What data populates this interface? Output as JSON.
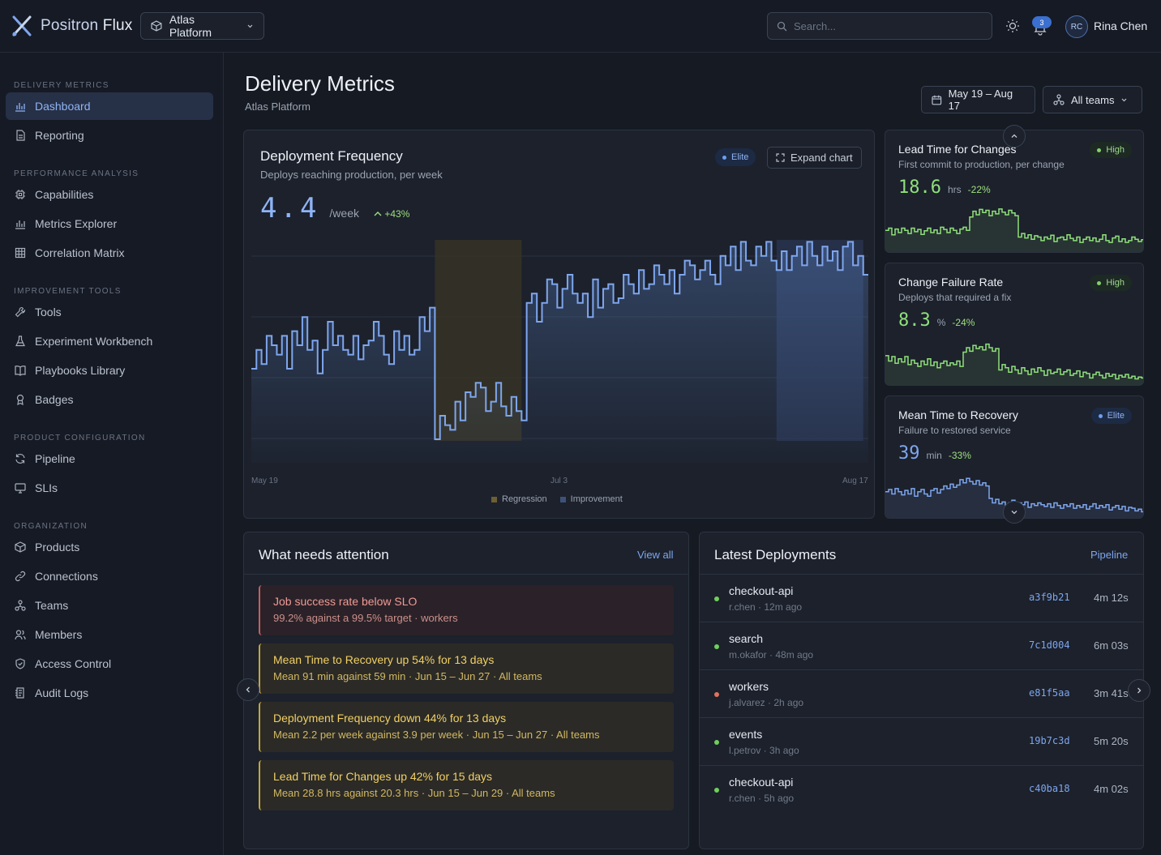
{
  "app": {
    "brand_a": "Positron",
    "brand_b": "Flux",
    "project": "Atlas Platform"
  },
  "topbar": {
    "search_placeholder": "Search...",
    "notifications": "3",
    "user_initials": "RC",
    "user_name": "Rina Chen"
  },
  "sidebar": {
    "groups": [
      {
        "label": "DELIVERY METRICS",
        "items": [
          {
            "label": "Dashboard",
            "icon": "bar-chart-icon",
            "active": true
          },
          {
            "label": "Reporting",
            "icon": "document-icon"
          }
        ]
      },
      {
        "label": "PERFORMANCE ANALYSIS",
        "items": [
          {
            "label": "Capabilities",
            "icon": "chip-icon"
          },
          {
            "label": "Metrics Explorer",
            "icon": "bar-chart-icon"
          },
          {
            "label": "Correlation Matrix",
            "icon": "grid-icon"
          }
        ]
      },
      {
        "label": "IMPROVEMENT TOOLS",
        "items": [
          {
            "label": "Tools",
            "icon": "wrench-icon"
          },
          {
            "label": "Experiment Workbench",
            "icon": "flask-icon"
          },
          {
            "label": "Playbooks Library",
            "icon": "book-icon"
          },
          {
            "label": "Badges",
            "icon": "badge-icon"
          }
        ]
      },
      {
        "label": "PRODUCT CONFIGURATION",
        "items": [
          {
            "label": "Pipeline",
            "icon": "refresh-icon"
          },
          {
            "label": "SLIs",
            "icon": "monitor-icon"
          }
        ]
      },
      {
        "label": "ORGANIZATION",
        "items": [
          {
            "label": "Products",
            "icon": "box-icon"
          },
          {
            "label": "Connections",
            "icon": "link-icon"
          },
          {
            "label": "Teams",
            "icon": "teams-icon"
          },
          {
            "label": "Members",
            "icon": "users-icon"
          },
          {
            "label": "Access Control",
            "icon": "shield-icon"
          },
          {
            "label": "Audit Logs",
            "icon": "log-icon"
          }
        ]
      }
    ]
  },
  "header": {
    "title": "Delivery Metrics",
    "subtitle": "Atlas Platform",
    "date_range": "May 19 – Aug 17",
    "team_filter": "All teams"
  },
  "main_chart": {
    "title": "Deployment Frequency",
    "subtitle": "Deploys reaching production, per week",
    "badge": "Elite",
    "expand_label": "Expand chart",
    "value": "4.4",
    "unit": "/week",
    "delta": "+43%",
    "x_labels": [
      "May 19",
      "Jul 3",
      "Aug 17"
    ],
    "legend": [
      "Regression",
      "Improvement"
    ]
  },
  "chart_data": {
    "type": "line",
    "title": "Deployment Frequency",
    "x_ticks": [
      "May 19",
      "Jul 3",
      "Aug 17"
    ],
    "step": true,
    "regions": [
      {
        "label": "Regression",
        "from_index": 36,
        "to_index": 53,
        "color": "#3a3524"
      },
      {
        "label": "Improvement",
        "from_index": 103,
        "to_index": 120,
        "color": "#2a3552"
      }
    ],
    "values": [
      3.2,
      3.6,
      3.3,
      3.9,
      3.7,
      3.5,
      3.9,
      3.2,
      4.0,
      3.7,
      4.3,
      3.6,
      3.8,
      3.1,
      3.6,
      4.2,
      3.7,
      3.9,
      3.6,
      3.5,
      3.9,
      3.4,
      3.7,
      3.8,
      4.2,
      3.9,
      3.5,
      3.3,
      4.0,
      3.6,
      3.9,
      3.5,
      3.6,
      4.3,
      4.0,
      4.5,
      1.7,
      2.2,
      2.0,
      1.9,
      2.5,
      2.1,
      2.7,
      2.6,
      2.9,
      2.8,
      2.3,
      2.5,
      2.9,
      2.4,
      2.2,
      2.6,
      2.3,
      2.1,
      4.6,
      4.8,
      4.2,
      4.6,
      5.1,
      5.0,
      4.5,
      4.9,
      5.2,
      4.8,
      4.6,
      4.8,
      4.3,
      5.1,
      4.5,
      4.9,
      5.0,
      4.6,
      4.7,
      5.2,
      5.0,
      4.8,
      5.3,
      4.9,
      5.0,
      5.4,
      5.2,
      5.0,
      5.3,
      4.8,
      5.2,
      5.5,
      5.4,
      5.1,
      5.3,
      5.5,
      5.2,
      5.0,
      5.6,
      5.4,
      5.8,
      5.3,
      5.9,
      5.5,
      5.4,
      5.8,
      5.6,
      5.9,
      5.5,
      5.3,
      5.7,
      5.3,
      5.6,
      5.8,
      5.4,
      5.9,
      5.6,
      5.4,
      5.8,
      5.5,
      5.7,
      5.3,
      5.8,
      5.9,
      5.4,
      5.6,
      5.2
    ]
  },
  "side_metrics": [
    {
      "title": "Lead Time for Changes",
      "subtitle": "First commit to production, per change",
      "badge": "High",
      "badge_kind": "high",
      "value": "18.6",
      "unit": "hrs",
      "delta": "-22%",
      "color": "#8fe07a"
    },
    {
      "title": "Change Failure Rate",
      "subtitle": "Deploys that required a fix",
      "badge": "High",
      "badge_kind": "high",
      "value": "8.3",
      "unit": "%",
      "delta": "-24%",
      "color": "#8fe07a"
    },
    {
      "title": "Mean Time to Recovery",
      "subtitle": "Failure to restored service",
      "badge": "Elite",
      "badge_kind": "elite",
      "value": "39",
      "unit": "min",
      "delta": "-33%",
      "color": "#7ea6ee"
    }
  ],
  "attention": {
    "title": "What needs attention",
    "view_all": "View all",
    "items": [
      {
        "title": "Job success rate below SLO",
        "sub": "99.2% against a 99.5% target · workers",
        "kind": "red"
      },
      {
        "title": "Mean Time to Recovery up 54% for 13 days",
        "sub": "Mean 91 min against 59 min · Jun 15 – Jun 27 · All teams",
        "kind": "yel"
      },
      {
        "title": "Deployment Frequency down 44% for 13 days",
        "sub": "Mean 2.2 per week against 3.9 per week · Jun 15 – Jun 27 · All teams",
        "kind": "yel"
      },
      {
        "title": "Lead Time for Changes up 42% for 15 days",
        "sub": "Mean 28.8 hrs against 20.3 hrs · Jun 15 – Jun 29 · All teams",
        "kind": "yel"
      }
    ]
  },
  "deployments": {
    "title": "Latest Deployments",
    "link": "Pipeline",
    "rows": [
      {
        "name": "checkout-api",
        "meta": "r.chen · 12m ago",
        "hash": "a3f9b21",
        "duration": "4m 12s",
        "status": "success"
      },
      {
        "name": "search",
        "meta": "m.okafor · 48m ago",
        "hash": "7c1d004",
        "duration": "6m 03s",
        "status": "success"
      },
      {
        "name": "workers",
        "meta": "j.alvarez · 2h ago",
        "hash": "e81f5aa",
        "duration": "3m 41s",
        "status": "failed"
      },
      {
        "name": "events",
        "meta": "l.petrov · 3h ago",
        "hash": "19b7c3d",
        "duration": "5m 20s",
        "status": "success"
      },
      {
        "name": "checkout-api",
        "meta": "r.chen · 5h ago",
        "hash": "c40ba18",
        "duration": "4m 02s",
        "status": "success"
      }
    ]
  },
  "colors": {
    "accent": "#7ea6ee",
    "success": "#6fcf5a",
    "failure": "#e0735e"
  }
}
